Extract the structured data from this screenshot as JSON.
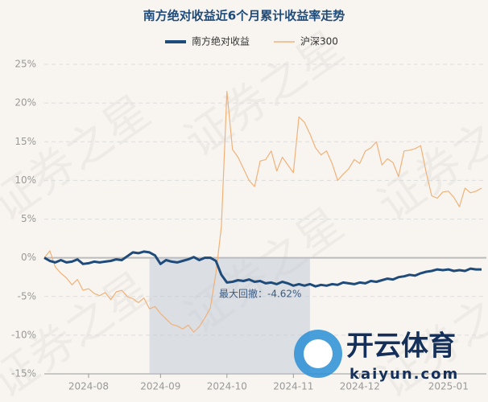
{
  "chart_data": {
    "type": "line",
    "title": "南方绝对收益近6个月累计收益率走势",
    "annotation": "最大回撤：-4.62%",
    "watermark": "证券之星",
    "logo_text": "开云体育",
    "logo_url": "kaiyun.com",
    "categories": [
      null,
      null,
      null,
      null,
      null,
      null,
      null,
      null,
      "2024-08",
      null,
      null,
      null,
      null,
      null,
      null,
      null,
      null,
      null,
      null,
      null,
      null,
      "2024-09",
      null,
      null,
      null,
      null,
      null,
      null,
      null,
      null,
      null,
      null,
      null,
      "2024-10",
      null,
      null,
      null,
      null,
      null,
      null,
      null,
      null,
      null,
      null,
      null,
      "2024-11",
      null,
      null,
      null,
      null,
      null,
      null,
      null,
      null,
      null,
      null,
      null,
      "2024-12",
      null,
      null,
      null,
      null,
      null,
      null,
      null,
      null,
      null,
      null,
      null,
      null,
      null,
      null,
      null,
      "2025-01",
      null,
      null,
      null,
      null,
      null,
      null
    ],
    "series": [
      {
        "name": "南方绝对收益",
        "color": "#1f4b7a",
        "values": [
          0,
          -0.4,
          -0.6,
          -0.3,
          -0.6,
          -0.5,
          -0.2,
          -0.8,
          -0.7,
          -0.5,
          -0.6,
          -0.5,
          -0.4,
          -0.2,
          -0.3,
          0.2,
          0.7,
          0.6,
          0.8,
          0.7,
          0.3,
          -0.8,
          -0.3,
          -0.5,
          -0.6,
          -0.4,
          -0.2,
          0.1,
          -0.3,
          0.0,
          0.0,
          -0.4,
          -2.2,
          -3.2,
          -3.1,
          -2.9,
          -3.0,
          -2.8,
          -3.1,
          -3.0,
          -3.3,
          -3.2,
          -3.4,
          -3.1,
          -3.3,
          -3.6,
          -3.4,
          -3.6,
          -3.4,
          -3.7,
          -3.5,
          -3.6,
          -3.4,
          -3.5,
          -3.2,
          -3.3,
          -3.4,
          -3.2,
          -3.3,
          -3.0,
          -3.1,
          -2.9,
          -2.7,
          -2.8,
          -2.5,
          -2.4,
          -2.2,
          -2.3,
          -2.0,
          -1.8,
          -1.7,
          -1.5,
          -1.6,
          -1.5,
          -1.7,
          -1.6,
          -1.7,
          -1.4,
          -1.5,
          -1.5
        ]
      },
      {
        "name": "沪深300",
        "color": "#f0b27a",
        "values": [
          0,
          0.9,
          -1.2,
          -2.0,
          -2.6,
          -3.5,
          -2.8,
          -4.2,
          -4.0,
          -4.6,
          -4.9,
          -4.5,
          -5.4,
          -4.4,
          -4.2,
          -5.0,
          -5.3,
          -5.8,
          -5.2,
          -6.6,
          -6.3,
          -7.2,
          -7.9,
          -8.6,
          -8.8,
          -9.2,
          -8.7,
          -9.6,
          -8.9,
          -7.8,
          -6.5,
          -2.0,
          4.0,
          21.5,
          14.0,
          13.0,
          11.5,
          10.0,
          9.2,
          12.5,
          12.7,
          13.8,
          11.2,
          13.0,
          12.0,
          11.0,
          18.2,
          17.5,
          16.0,
          14.2,
          13.3,
          13.8,
          12.2,
          10.0,
          10.8,
          11.5,
          12.7,
          12.2,
          13.8,
          14.2,
          15.0,
          12.0,
          12.8,
          12.3,
          10.5,
          13.8,
          13.9,
          14.1,
          14.5,
          11.0,
          8.0,
          7.7,
          8.5,
          8.6,
          7.8,
          6.6,
          9.0,
          8.4,
          8.6,
          9.0
        ]
      }
    ],
    "ylim": [
      -15,
      25
    ],
    "yticks": [
      {
        "value": -15,
        "label": "-15%"
      },
      {
        "value": -10,
        "label": "-10%"
      },
      {
        "value": -5,
        "label": "-5%"
      },
      {
        "value": 0,
        "label": "0%"
      },
      {
        "value": 5,
        "label": "5%"
      },
      {
        "value": 10,
        "label": "10%"
      },
      {
        "value": 15,
        "label": "15%"
      },
      {
        "value": 20,
        "label": "20%"
      },
      {
        "value": 25,
        "label": "25%"
      }
    ],
    "grid": true
  }
}
